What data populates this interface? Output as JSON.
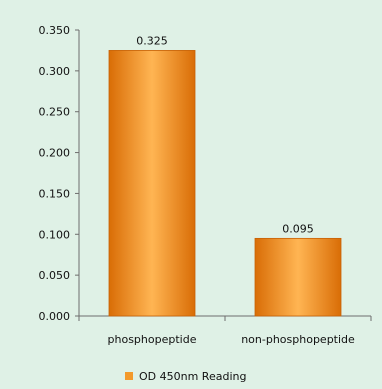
{
  "chart_data": {
    "type": "bar",
    "categories": [
      "phosphopeptide",
      "non-phosphopeptide"
    ],
    "series": [
      {
        "name": "OD 450nm Reading",
        "values": [
          0.325,
          0.095
        ]
      }
    ],
    "data_labels": [
      "0.325",
      "0.095"
    ],
    "y_ticks": [
      "0.000",
      "0.050",
      "0.100",
      "0.150",
      "0.200",
      "0.250",
      "0.300",
      "0.350"
    ],
    "ylim": [
      0,
      0.35
    ],
    "grid": false,
    "legend_position": "bottom",
    "title": "",
    "xlabel": "",
    "ylabel": ""
  },
  "colors": {
    "background": "#dff1e6",
    "bar_light": "#ffb553",
    "bar_mid": "#f7931e",
    "bar_dark": "#d96d06",
    "axis": "#6d6d6d",
    "legend_marker": "#f39a2b"
  }
}
